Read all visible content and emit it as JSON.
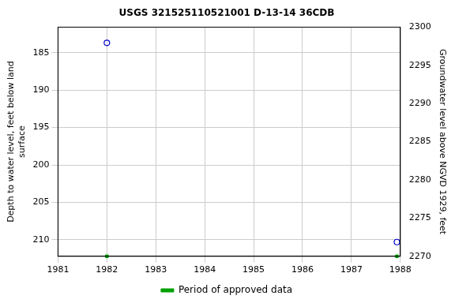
{
  "chart_data": {
    "type": "scatter",
    "title": "USGS 321525110521001 D-13-14 36CDB",
    "y_label": [
      "Depth to water level, feet below land",
      "surface"
    ],
    "y2_label": "Groundwater level above NGVD 1929, feet",
    "x": [
      1982,
      1987.93
    ],
    "series": [
      {
        "color": "#0000cc",
        "marker": "open_circle",
        "values": [
          183.7,
          210.3
        ]
      }
    ],
    "approved_periods": {
      "name": "Period of approved data",
      "color": "#00a000",
      "x": [
        1982,
        1987.93
      ]
    },
    "xlim": [
      1981,
      1988
    ],
    "xticks": [
      1981,
      1982,
      1983,
      1984,
      1985,
      1986,
      1987,
      1988
    ],
    "ylim": [
      181.6,
      212.2
    ],
    "yticks": [
      185,
      190,
      195,
      200,
      205,
      210
    ],
    "y2lim": [
      2270,
      2300
    ],
    "y2ticks": [
      2270,
      2275,
      2280,
      2285,
      2290,
      2295,
      2300
    ],
    "grid": true,
    "legend": "bottom"
  }
}
